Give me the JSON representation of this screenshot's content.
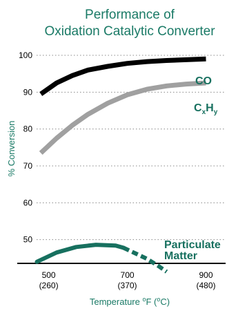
{
  "chart_data": {
    "type": "line",
    "title": [
      "Performance of",
      "Oxidation Catalytic Converter"
    ],
    "ylabel": "% Conversion",
    "xlabel_main": "Temperature ",
    "xlabel_unit1": "o",
    "xlabel_mid": "F (",
    "xlabel_unit2": "o",
    "xlabel_end": "C)",
    "xlim": [
      420,
      950
    ],
    "ylim": [
      40,
      100
    ],
    "yticks": [
      50,
      60,
      70,
      80,
      90,
      100
    ],
    "xticks": [
      {
        "value": 500,
        "label": "500",
        "sublabel": "(260)"
      },
      {
        "value": 700,
        "label": "700",
        "sublabel": "(370)"
      },
      {
        "value": 900,
        "label": "900",
        "sublabel": "(480)"
      }
    ],
    "grid": true,
    "series": [
      {
        "name": "CO",
        "color": "#000000",
        "x": [
          480,
          520,
          560,
          600,
          650,
          700,
          750,
          800,
          850,
          900
        ],
        "y": [
          89.5,
          92.5,
          94.5,
          96,
          97,
          97.8,
          98.3,
          98.6,
          98.8,
          99
        ]
      },
      {
        "name": "CₓHᵧ",
        "name_base_1": "C",
        "name_sub_1": "x",
        "name_base_2": "H",
        "name_sub_2": "y",
        "color": "#a0a0a0",
        "x": [
          480,
          520,
          560,
          600,
          650,
          700,
          750,
          800,
          850,
          900
        ],
        "y": [
          73.5,
          77.5,
          81,
          84,
          87,
          89.3,
          90.8,
          91.7,
          92.2,
          92.5
        ]
      },
      {
        "name": "Particulate Matter",
        "name_line1": "Particulate",
        "name_line2": "Matter",
        "color": "#17705f",
        "solid": {
          "x": [
            470,
            520,
            570,
            620,
            670,
            690
          ],
          "y": [
            44,
            46.5,
            48,
            48.6,
            48.4,
            47.8
          ]
        },
        "dashed": {
          "x": [
            690,
            720,
            750,
            780,
            800
          ],
          "y": [
            47.8,
            46.3,
            44.8,
            42.8,
            41.3
          ]
        }
      }
    ]
  }
}
